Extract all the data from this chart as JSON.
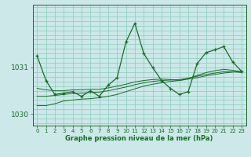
{
  "title": "Graphe pression niveau de la mer (hPa)",
  "bg_color": "#cce8e8",
  "grid_color": "#88ccbb",
  "line_color": "#1a6b2a",
  "x_ticks": [
    0,
    1,
    2,
    3,
    4,
    5,
    6,
    7,
    8,
    9,
    10,
    11,
    12,
    13,
    14,
    15,
    16,
    17,
    18,
    19,
    20,
    21,
    22,
    23
  ],
  "ylim": [
    1029.75,
    1032.35
  ],
  "yticks": [
    1030,
    1031
  ],
  "main_series": [
    1031.25,
    1030.72,
    1030.42,
    1030.45,
    1030.48,
    1030.38,
    1030.5,
    1030.38,
    1030.62,
    1030.78,
    1031.55,
    1031.95,
    1031.3,
    1031.0,
    1030.72,
    1030.55,
    1030.42,
    1030.48,
    1031.08,
    1031.32,
    1031.38,
    1031.45,
    1031.12,
    1030.92
  ],
  "smooth1": [
    1030.18,
    1030.18,
    1030.22,
    1030.28,
    1030.3,
    1030.32,
    1030.33,
    1030.35,
    1030.38,
    1030.42,
    1030.48,
    1030.54,
    1030.6,
    1030.64,
    1030.67,
    1030.7,
    1030.72,
    1030.75,
    1030.78,
    1030.82,
    1030.85,
    1030.88,
    1030.9,
    1030.92
  ],
  "smooth2": [
    1030.38,
    1030.38,
    1030.4,
    1030.42,
    1030.44,
    1030.45,
    1030.46,
    1030.47,
    1030.5,
    1030.54,
    1030.58,
    1030.63,
    1030.67,
    1030.7,
    1030.72,
    1030.73,
    1030.74,
    1030.77,
    1030.81,
    1030.85,
    1030.88,
    1030.91,
    1030.91,
    1030.89
  ],
  "smooth3": [
    1030.55,
    1030.52,
    1030.5,
    1030.5,
    1030.52,
    1030.52,
    1030.53,
    1030.53,
    1030.56,
    1030.6,
    1030.64,
    1030.69,
    1030.72,
    1030.74,
    1030.75,
    1030.74,
    1030.72,
    1030.76,
    1030.83,
    1030.89,
    1030.93,
    1030.96,
    1030.94,
    1030.91
  ]
}
